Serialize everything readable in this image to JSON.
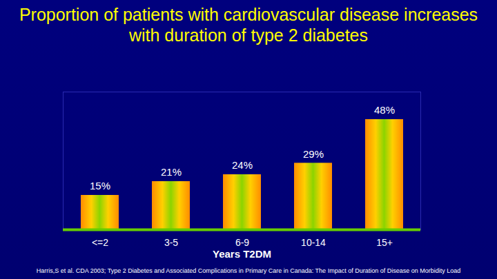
{
  "chart_data": {
    "type": "bar",
    "title": "Proportion of patients with cardiovascular disease increases with duration of type 2 diabetes",
    "categories": [
      "<=2",
      "3-5",
      "6-9",
      "10-14",
      "15+"
    ],
    "values": [
      15,
      21,
      24,
      29,
      48
    ],
    "value_labels": [
      "15%",
      "21%",
      "24%",
      "29%",
      "48%"
    ],
    "data_labels": true,
    "xlabel": "Years T2DM",
    "color": "#ff8c00",
    "ylim": [
      0,
      60
    ],
    "tick_labels": "x",
    "grid": false,
    "source": "Harris,S et al. CDA 2003; Type 2 Diabetes and Associated Complications in Primary Care in Canada: The Impact of Duration of Disease on Morbidity Load"
  }
}
